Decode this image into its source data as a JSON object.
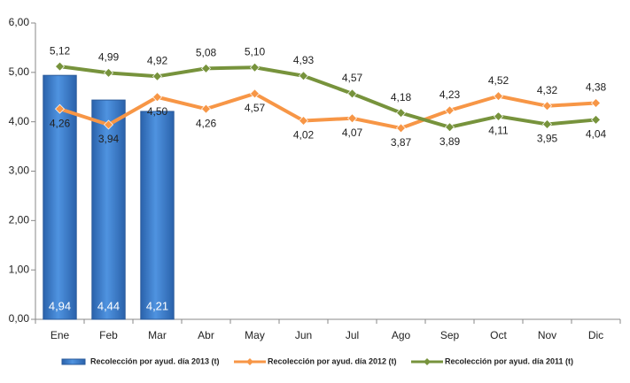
{
  "chart_data": {
    "type": "bar",
    "categories": [
      "Ene",
      "Feb",
      "Mar",
      "Abr",
      "May",
      "Jun",
      "Jul",
      "Ago",
      "Sep",
      "Oct",
      "Nov",
      "Dic"
    ],
    "ylim": [
      0,
      6
    ],
    "yticks": [
      {
        "value": 0,
        "label": "0,00"
      },
      {
        "value": 1,
        "label": "1,00"
      },
      {
        "value": 2,
        "label": "2,00"
      },
      {
        "value": 3,
        "label": "3,00"
      },
      {
        "value": 4,
        "label": "4,00"
      },
      {
        "value": 5,
        "label": "5,00"
      },
      {
        "value": 6,
        "label": "6,00"
      }
    ],
    "legend": "bottom",
    "series": [
      {
        "name": "Recolección por ayud. día 2013 (t)",
        "type": "bar",
        "color": "#3c7fd1",
        "values": [
          4.94,
          4.44,
          4.21,
          null,
          null,
          null,
          null,
          null,
          null,
          null,
          null,
          null
        ],
        "value_labels": [
          "4,94",
          "4,44",
          "4,21",
          null,
          null,
          null,
          null,
          null,
          null,
          null,
          null,
          null
        ]
      },
      {
        "name": "Recolección por ayud. día 2012 (t)",
        "type": "line",
        "color": "#f79646",
        "values": [
          4.26,
          3.94,
          4.5,
          4.26,
          4.57,
          4.02,
          4.07,
          3.87,
          4.23,
          4.52,
          4.32,
          4.38
        ],
        "value_labels": [
          "4,26",
          "3,94",
          "4,50",
          "4,26",
          "4,57",
          "4,02",
          "4,07",
          "3,87",
          "4,23",
          "4,52",
          "4,32",
          "4,38"
        ]
      },
      {
        "name": "Recolección por ayud. día 2011 (t)",
        "type": "line",
        "color": "#77933c",
        "values": [
          5.12,
          4.99,
          4.92,
          5.08,
          5.1,
          4.93,
          4.57,
          4.18,
          3.89,
          4.11,
          3.95,
          4.04
        ],
        "value_labels": [
          "5,12",
          "4,99",
          "4,92",
          "5,08",
          "5,10",
          "4,93",
          "4,57",
          "4,18",
          "3,89",
          "4,11",
          "3,95",
          "4,04"
        ]
      }
    ]
  }
}
